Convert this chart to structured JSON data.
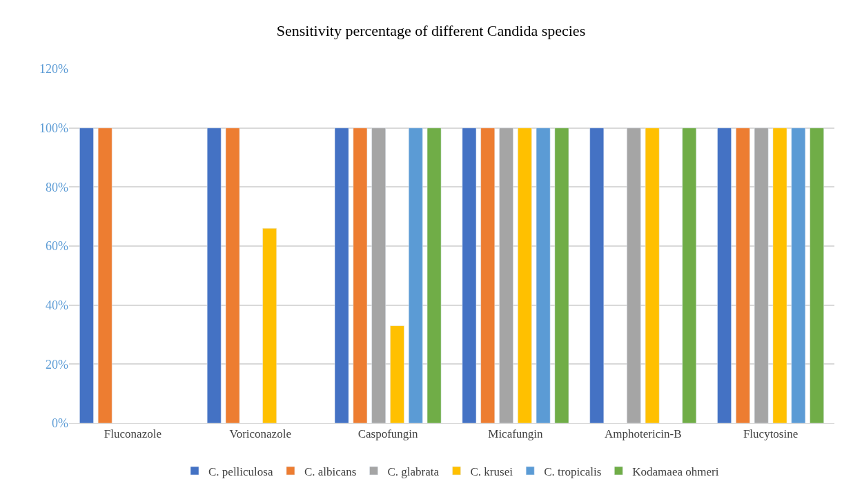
{
  "chart_data": {
    "type": "bar",
    "title": "Sensitivity percentage of different Candida species",
    "categories": [
      "Fluconazole",
      "Voriconazole",
      "Caspofungin",
      "Micafungin",
      "Amphotericin-B",
      "Flucytosine"
    ],
    "series": [
      {
        "name": "C. pelliculosa",
        "color": "#4472c4",
        "values": [
          100,
          100,
          100,
          100,
          100,
          100
        ]
      },
      {
        "name": "C. albicans",
        "color": "#ed7d31",
        "values": [
          100,
          100,
          100,
          100,
          null,
          100
        ]
      },
      {
        "name": "C. glabrata",
        "color": "#a5a5a5",
        "values": [
          null,
          null,
          100,
          100,
          100,
          100
        ]
      },
      {
        "name": "C. krusei",
        "color": "#ffc000",
        "values": [
          null,
          66,
          33,
          100,
          100,
          100
        ]
      },
      {
        "name": "C. tropicalis",
        "color": "#5b9bd5",
        "values": [
          null,
          null,
          100,
          100,
          null,
          100
        ]
      },
      {
        "name": "Kodamaea ohmeri",
        "color": "#70ad47",
        "values": [
          null,
          null,
          100,
          100,
          100,
          100
        ]
      }
    ],
    "ylim": [
      0,
      120
    ],
    "yticks": [
      {
        "value": 0,
        "label": "0%"
      },
      {
        "value": 20,
        "label": "20%"
      },
      {
        "value": 40,
        "label": "40%"
      },
      {
        "value": 60,
        "label": "60%"
      },
      {
        "value": 80,
        "label": "80%"
      },
      {
        "value": 100,
        "label": "100%"
      },
      {
        "value": 120,
        "label": "120%"
      }
    ],
    "grid": "y",
    "legend": "bottom"
  }
}
